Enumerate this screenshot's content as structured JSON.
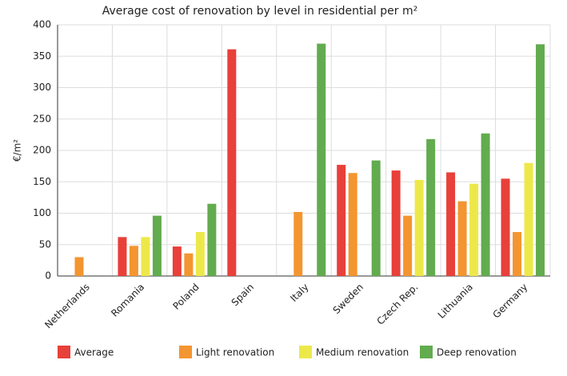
{
  "chart_data": {
    "type": "bar",
    "title": "Average cost of renovation by level in residential per m²",
    "y_label": "€/m²",
    "categories": [
      "Netherlands",
      "Romania",
      "Poland",
      "Spain",
      "Italy",
      "Sweden",
      "Czech Rep.",
      "Lithuania",
      "Germany"
    ],
    "series": [
      {
        "name": "Average",
        "color": "#e8403a",
        "values": [
          null,
          62,
          47,
          361,
          null,
          177,
          168,
          165,
          155
        ]
      },
      {
        "name": "Light renovation",
        "color": "#f39530",
        "values": [
          30,
          48,
          36,
          null,
          102,
          164,
          96,
          119,
          70
        ]
      },
      {
        "name": "Medium renovation",
        "color": "#ede84a",
        "values": [
          null,
          62,
          70,
          null,
          null,
          null,
          153,
          147,
          180
        ]
      },
      {
        "name": "Deep renovation",
        "color": "#62ab4f",
        "values": [
          null,
          96,
          115,
          null,
          370,
          184,
          218,
          227,
          369
        ]
      }
    ],
    "ylim": [
      0,
      400
    ],
    "yticks": [
      0,
      50,
      100,
      150,
      200,
      250,
      300,
      350,
      400
    ],
    "grid": true,
    "legend": "bottom"
  }
}
